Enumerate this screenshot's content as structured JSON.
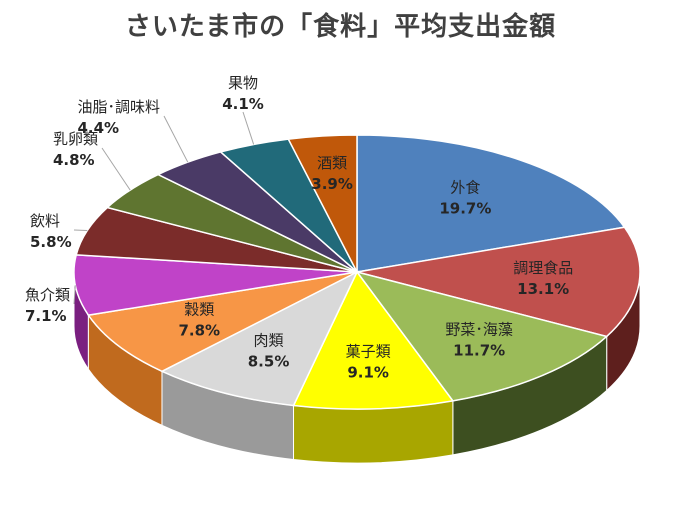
{
  "chart_data": {
    "type": "pie",
    "title": "さいたま市の「食料」平均支出金額",
    "slices": [
      {
        "label": "外食",
        "value": 19.7,
        "value_text": "19.7%",
        "color": "#4f81bd",
        "side": "#2f4d73"
      },
      {
        "label": "調理食品",
        "value": 13.1,
        "value_text": "13.1%",
        "color": "#c0504d",
        "side": "#5e1f1d"
      },
      {
        "label": "野菜･海藻",
        "value": 11.7,
        "value_text": "11.7%",
        "color": "#9bbb59",
        "side": "#3d4f20"
      },
      {
        "label": "菓子類",
        "value": 9.1,
        "value_text": "9.1%",
        "color": "#ffff00",
        "side": "#a8a600"
      },
      {
        "label": "肉類",
        "value": 8.5,
        "value_text": "8.5%",
        "color": "#d9d9d9",
        "side": "#9a9a9a"
      },
      {
        "label": "穀類",
        "value": 7.8,
        "value_text": "7.8%",
        "color": "#f79646",
        "side": "#c06a1e"
      },
      {
        "label": "魚介類",
        "value": 7.1,
        "value_text": "7.1%",
        "color": "#c043c8",
        "side": "#7a1f80"
      },
      {
        "label": "飲料",
        "value": 5.8,
        "value_text": "5.8%",
        "color": "#7b2c2a",
        "side": "#4a1716"
      },
      {
        "label": "乳卵類",
        "value": 4.8,
        "value_text": "4.8%",
        "color": "#5f7530",
        "side": "#3a4a1a"
      },
      {
        "label": "油脂･調味料",
        "value": 4.4,
        "value_text": "4.4%",
        "color": "#4a3a66",
        "side": "#2d2240"
      },
      {
        "label": "果物",
        "value": 4.1,
        "value_text": "4.1%",
        "color": "#216a7a",
        "side": "#123e48"
      },
      {
        "label": "酒類",
        "value": 3.9,
        "value_text": "3.9%",
        "color": "#c0580a",
        "side": "#7a3806"
      }
    ]
  }
}
